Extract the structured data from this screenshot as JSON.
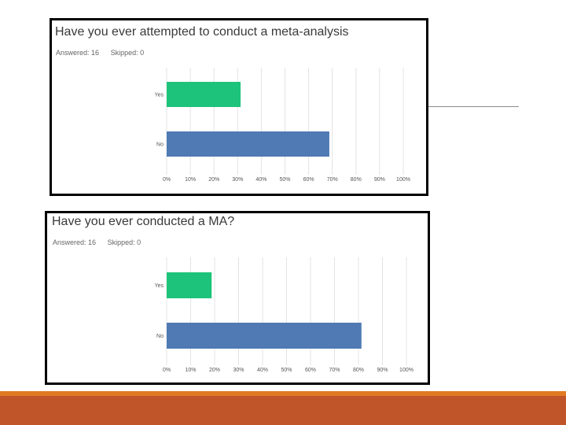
{
  "colors": {
    "yes": "#1dc37a",
    "no": "#4f7ab3",
    "grid": "#e3e3e3",
    "tick_text": "#555555",
    "border": "#000000"
  },
  "chart_data": [
    {
      "type": "bar",
      "orientation": "horizontal",
      "title": "Have you ever attempted to conduct a meta-analysis",
      "answered": "Answered: 16",
      "skipped": "Skipped: 0",
      "categories": [
        "Yes",
        "No"
      ],
      "values": [
        31.25,
        68.75
      ],
      "xlim": [
        0,
        100
      ],
      "xticks": [
        "0%",
        "10%",
        "20%",
        "30%",
        "40%",
        "50%",
        "60%",
        "70%",
        "80%",
        "90%",
        "100%"
      ],
      "grid": "vertical"
    },
    {
      "type": "bar",
      "orientation": "horizontal",
      "title": "Have you ever conducted a MA?",
      "answered": "Answered: 16",
      "skipped": "Skipped: 0",
      "categories": [
        "Yes",
        "No"
      ],
      "values": [
        18.75,
        81.25
      ],
      "xlim": [
        0,
        100
      ],
      "xticks": [
        "0%",
        "10%",
        "20%",
        "30%",
        "40%",
        "50%",
        "60%",
        "70%",
        "80%",
        "90%",
        "100%"
      ],
      "grid": "vertical"
    }
  ]
}
